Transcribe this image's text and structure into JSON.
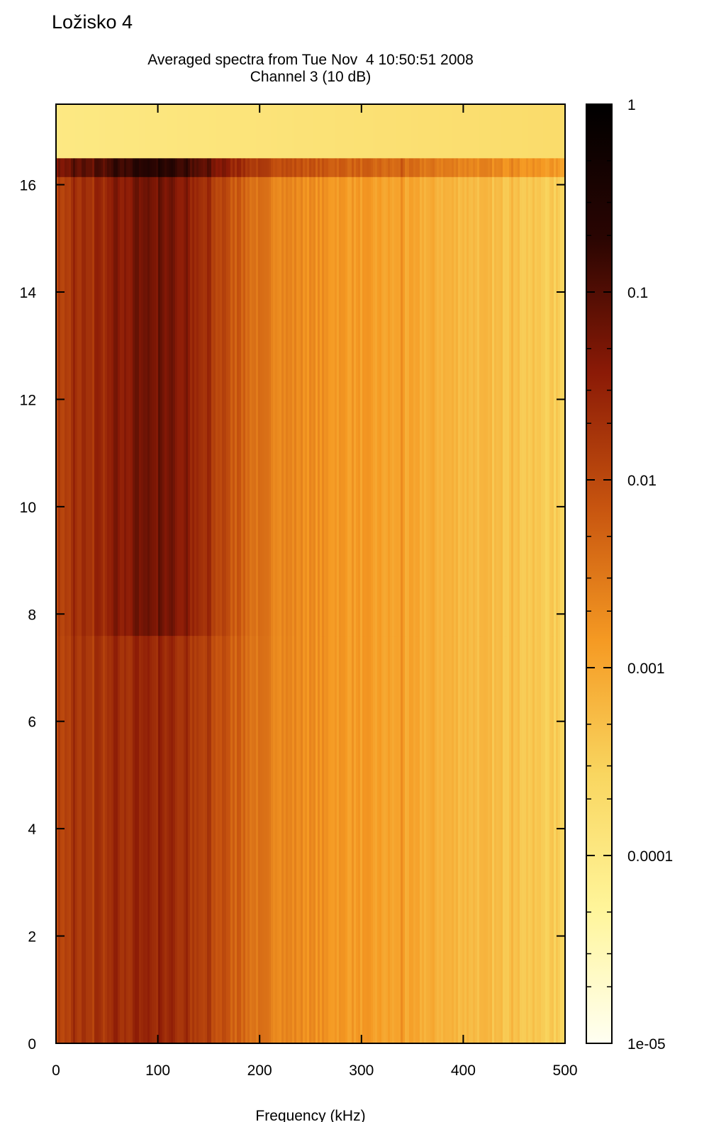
{
  "page_title": "Ložisko 4",
  "chart_data": {
    "type": "heatmap",
    "title": "Averaged spectra from Tue Nov  4 10:50:51 2008",
    "subtitle": "Channel 3 (10 dB)",
    "xlabel": "Frequency (kHz)",
    "ylabel": "",
    "xlim": [
      0,
      500
    ],
    "ylim": [
      0,
      17.5
    ],
    "x_ticks": [
      "0",
      "100",
      "200",
      "300",
      "400",
      "500"
    ],
    "y_ticks": [
      "0",
      "2",
      "4",
      "6",
      "8",
      "10",
      "12",
      "14",
      "16"
    ],
    "colorbar": {
      "scale": "log",
      "range": [
        1e-05,
        1
      ],
      "tick_labels": [
        "1",
        "0.1",
        "0.01",
        "0.001",
        "0.0001",
        "1e-05"
      ],
      "colors": [
        "#fffff2",
        "#fff59a",
        "#f9d660",
        "#f59a23",
        "#c7540f",
        "#8b1a06",
        "#2a0502",
        "#000000"
      ]
    },
    "features": {
      "low_energy_band_y": [
        16.5,
        17.5
      ],
      "intensity_step_y": 7.6,
      "strong_lines_khz": [
        18,
        28,
        40,
        58,
        78,
        90,
        103,
        115,
        128,
        150,
        165,
        180,
        340,
        448
      ]
    }
  }
}
